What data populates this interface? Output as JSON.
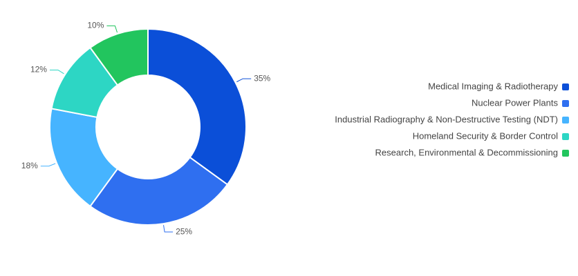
{
  "chart_data": {
    "type": "pie",
    "categories": [
      "Medical Imaging & Radiotherapy",
      "Nuclear Power Plants",
      "Industrial Radiography & Non-Destructive Testing (NDT)",
      "Homeland Security & Border Control",
      "Research, Environmental & Decommissioning"
    ],
    "values": [
      35,
      25,
      18,
      12,
      10
    ],
    "value_labels": [
      "35%",
      "25%",
      "18%",
      "12%",
      "10%"
    ],
    "colors": [
      "#0b4fd8",
      "#2f6ff0",
      "#46b4ff",
      "#2dd6c4",
      "#22c55e"
    ],
    "donut": true,
    "legend": "right"
  }
}
